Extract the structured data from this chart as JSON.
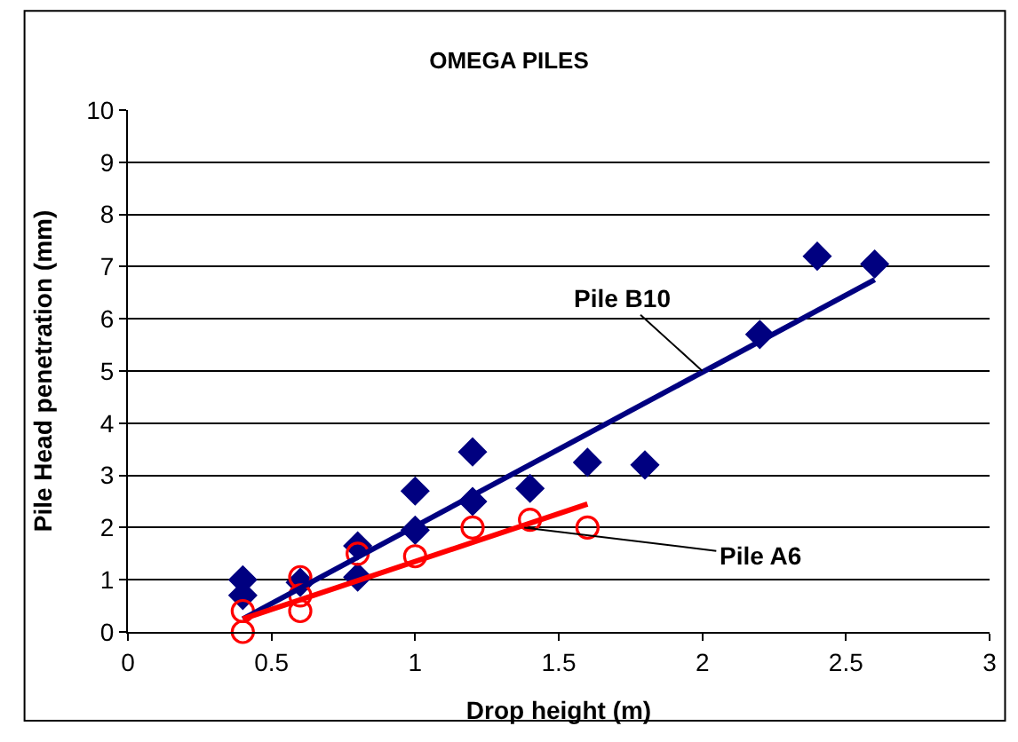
{
  "chart_data": {
    "type": "scatter",
    "title": "OMEGA PILES",
    "xlabel": "Drop height (m)",
    "ylabel": "Pile Head penetration (mm)",
    "xlim": [
      0,
      3
    ],
    "xticks": [
      0,
      0.5,
      1,
      1.5,
      2,
      2.5,
      3
    ],
    "ylim": [
      0,
      10
    ],
    "yticks": [
      0,
      1,
      2,
      3,
      4,
      5,
      6,
      7,
      8,
      9,
      10
    ],
    "grid": "y",
    "series": [
      {
        "marker": "diamond",
        "color": "#000080",
        "x": [
          0.4,
          0.4,
          0.6,
          0.8,
          0.8,
          1.0,
          1.0,
          1.2,
          1.2,
          1.4,
          1.6,
          1.8,
          2.2,
          2.4,
          2.6
        ],
        "values": [
          1.0,
          0.7,
          0.95,
          1.65,
          1.05,
          2.7,
          1.95,
          3.45,
          2.5,
          2.75,
          3.25,
          3.2,
          5.7,
          7.2,
          7.05
        ]
      },
      {
        "marker": "circle",
        "color": "#ff0000",
        "x": [
          0.4,
          0.4,
          0.6,
          0.6,
          0.6,
          0.8,
          1.0,
          1.2,
          1.4,
          1.6
        ],
        "values": [
          0.4,
          0.0,
          1.05,
          0.7,
          0.4,
          1.5,
          1.45,
          2.0,
          2.15,
          2.0
        ]
      },
      {
        "type": "line",
        "marker": "none",
        "color": "#000080",
        "x": [
          0.4,
          2.6
        ],
        "values": [
          0.25,
          6.75
        ]
      },
      {
        "type": "line",
        "marker": "none",
        "color": "#ff0000",
        "x": [
          0.4,
          1.6
        ],
        "values": [
          0.25,
          2.45
        ]
      }
    ],
    "annotations": [
      {
        "text": "Pile B10",
        "x": 2.0,
        "y": 5.0
      },
      {
        "text": "Pile A6",
        "x": 1.38,
        "y": 2.0
      }
    ]
  }
}
